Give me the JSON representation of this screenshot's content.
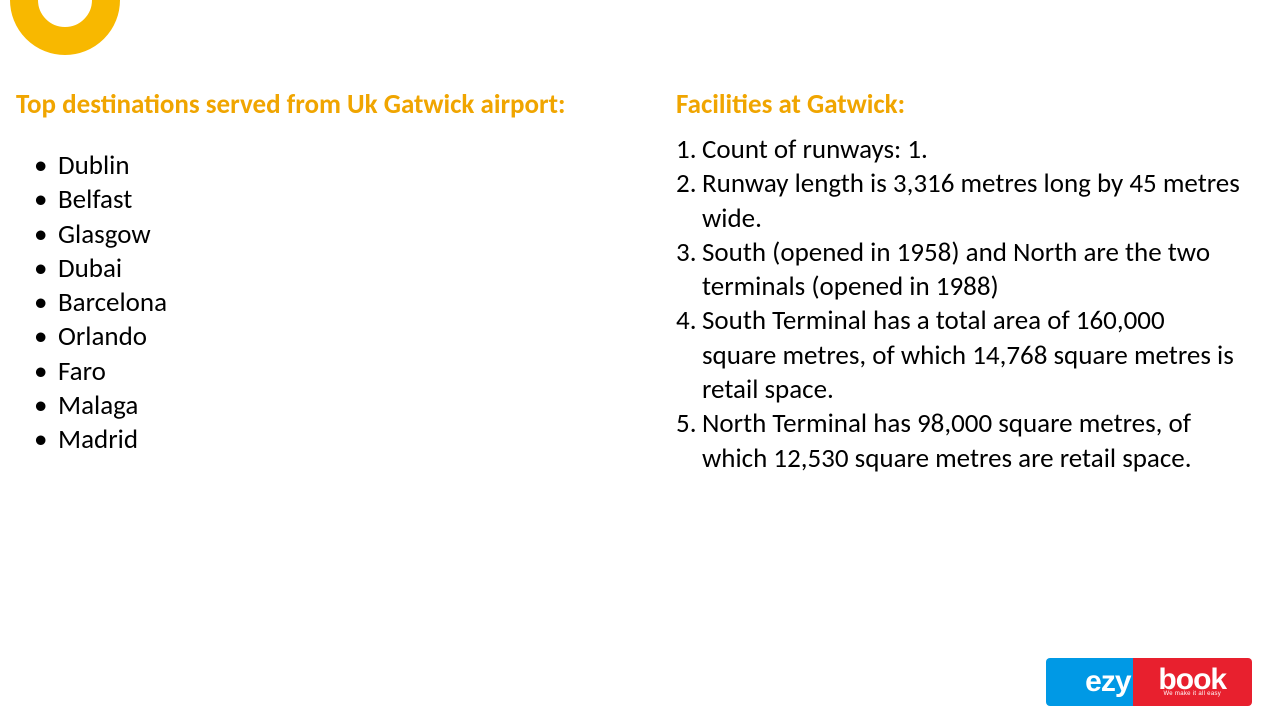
{
  "accent_color": "#f0a500",
  "ring_color": "#f8b800",
  "left": {
    "heading": "Top destinations served from Uk Gatwick airport:",
    "items": [
      "Dublin",
      "Belfast",
      "Glasgow",
      "Dubai",
      "Barcelona",
      "Orlando",
      "Faro",
      "Malaga",
      "Madrid"
    ]
  },
  "right": {
    "heading": "Facilities at Gatwick:",
    "items": [
      "Count of runways: 1.",
      "Runway length is 3,316 metres long by 45 metres wide.",
      "South (opened in 1958) and North are the two terminals (opened in 1988)",
      " South Terminal has a total area of 160,000 square metres, of which 14,768 square metres is retail space.",
      "North Terminal has 98,000 square metres, of which 12,530 square metres are retail space."
    ]
  },
  "logo": {
    "left_text": "ezy",
    "right_text": "book",
    "tagline": "We make it all easy",
    "left_bg": "#0099e5",
    "right_bg": "#e8202e"
  }
}
